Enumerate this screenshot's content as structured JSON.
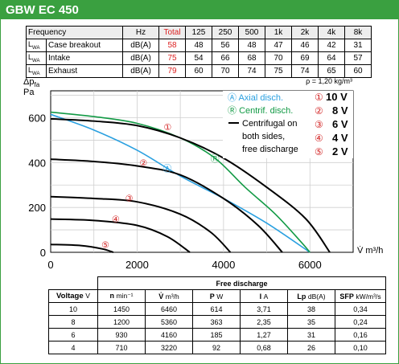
{
  "product": {
    "title": "GBW EC 450"
  },
  "noise_table": {
    "headers": [
      "Frequency",
      "Hz",
      "Total",
      "125",
      "250",
      "500",
      "1k",
      "2k",
      "4k",
      "8k"
    ],
    "rows": [
      {
        "symbol": "L",
        "symbol_sub": "WA",
        "label": "Case breakout",
        "unit": "dB(A)",
        "total": "58",
        "values": [
          "48",
          "56",
          "48",
          "47",
          "46",
          "42",
          "31"
        ]
      },
      {
        "symbol": "L",
        "symbol_sub": "WA",
        "label": "Intake",
        "unit": "dB(A)",
        "total": "75",
        "values": [
          "54",
          "66",
          "68",
          "70",
          "69",
          "64",
          "57"
        ]
      },
      {
        "symbol": "L",
        "symbol_sub": "WA",
        "label": "Exhaust",
        "unit": "dB(A)",
        "total": "79",
        "values": [
          "60",
          "70",
          "74",
          "75",
          "74",
          "65",
          "60"
        ]
      }
    ]
  },
  "chart_data": {
    "type": "line",
    "ylabel_main": "Δp",
    "ylabel_sub": "fa",
    "ylabel_unit": "Pa",
    "xlabel": "V̇ m³/h",
    "density_note": "ρ = 1,20 kg/m³",
    "x_ticks": [
      "0",
      "2000",
      "4000",
      "6000"
    ],
    "y_ticks": [
      "0",
      "200",
      "400",
      "600"
    ],
    "xlim": [
      0,
      7000
    ],
    "ylim": [
      0,
      720
    ],
    "series": [
      {
        "name": "Axial disch.",
        "marker": "A",
        "color": "#2aa0e0",
        "x": [
          0,
          1000,
          2000,
          3000,
          4000,
          5000,
          6000
        ],
        "y": [
          615,
          545,
          455,
          340,
          240,
          130,
          0
        ]
      },
      {
        "name": "Centrif. disch.",
        "marker": "R",
        "color": "#129a45",
        "x": [
          0,
          1000,
          2000,
          3000,
          3800,
          4500,
          5200,
          5800,
          6000
        ],
        "y": [
          625,
          605,
          575,
          510,
          420,
          290,
          170,
          45,
          0
        ]
      },
      {
        "name": "Voltage 10 V",
        "marker": "1",
        "color": "#000000",
        "x": [
          0,
          1000,
          2000,
          3000,
          4000,
          5000,
          5900,
          6460
        ],
        "y": [
          595,
          585,
          565,
          510,
          420,
          290,
          150,
          0
        ]
      },
      {
        "name": "Voltage 8 V",
        "marker": "2",
        "color": "#000000",
        "x": [
          0,
          1000,
          2000,
          3000,
          4000,
          4800,
          5360
        ],
        "y": [
          415,
          405,
          385,
          345,
          240,
          120,
          0
        ]
      },
      {
        "name": "Voltage 6 V",
        "marker": "3",
        "color": "#000000",
        "x": [
          0,
          1000,
          2000,
          3000,
          3700,
          4160
        ],
        "y": [
          248,
          240,
          225,
          170,
          90,
          0
        ]
      },
      {
        "name": "Voltage 4 V",
        "marker": "4",
        "color": "#000000",
        "x": [
          0,
          1000,
          2000,
          2700,
          3220
        ],
        "y": [
          148,
          142,
          120,
          70,
          0
        ]
      },
      {
        "name": "Voltage 2 V",
        "marker": "5",
        "color": "#000000",
        "x": [
          0,
          700,
          1200,
          1450
        ],
        "y": [
          35,
          30,
          15,
          0
        ]
      }
    ]
  },
  "legend": {
    "axial": {
      "symbol": "Ⓐ",
      "label": "Axial disch."
    },
    "centrif": {
      "symbol": "Ⓡ",
      "label": "Centrif. disch."
    },
    "free": {
      "line1": "Centrifugal on",
      "line2": "both sides,",
      "line3": "free discharge"
    },
    "voltages": [
      {
        "symbol": "①",
        "label": "10 V"
      },
      {
        "symbol": "②",
        "label": "8 V"
      },
      {
        "symbol": "③",
        "label": "6 V"
      },
      {
        "symbol": "④",
        "label": "4 V"
      },
      {
        "symbol": "⑤",
        "label": "2 V"
      }
    ]
  },
  "perf_table": {
    "group_header": "Free discharge",
    "headers": [
      {
        "main": "Voltage",
        "unit": "V"
      },
      {
        "main": "n",
        "unit": "min⁻¹"
      },
      {
        "main": "V̇",
        "unit": "m³/h"
      },
      {
        "main": "P",
        "unit": "W"
      },
      {
        "main": "I",
        "unit": "A"
      },
      {
        "main": "Lp",
        "unit": "dB(A)"
      },
      {
        "main": "SFP",
        "unit": "kW/m³/s"
      }
    ],
    "rows": [
      [
        "10",
        "1450",
        "6460",
        "614",
        "3,71",
        "38",
        "0,34"
      ],
      [
        "8",
        "1200",
        "5360",
        "363",
        "2,35",
        "35",
        "0,24"
      ],
      [
        "6",
        "930",
        "4160",
        "185",
        "1,27",
        "31",
        "0,16"
      ],
      [
        "4",
        "710",
        "3220",
        "92",
        "0,68",
        "26",
        "0,10"
      ]
    ]
  },
  "colors": {
    "brand_green": "#3aa040",
    "axial_blue": "#2aa0e0",
    "centrif_green": "#129a45",
    "voltage_red": "#d22222"
  }
}
